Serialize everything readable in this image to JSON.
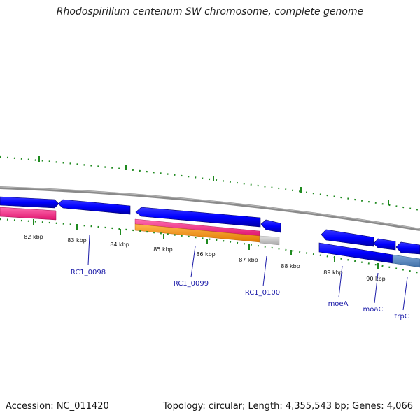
{
  "title": "Rhodospirillum centenum SW chromosome, complete genome",
  "footer": {
    "accession": "Accession: NC_011420",
    "summary": "Topology: circular; Length: 4,355,543 bp; Genes: 4,066"
  },
  "colors": {
    "backbone": "#808080",
    "gene_blue": "#0000ff",
    "gene_blue_dark": "#0000b0",
    "pink": "#ff2d8c",
    "orange": "#ff9800",
    "grey": "#c8c8c8",
    "steel": "#5a8ac0",
    "tick_green": "#1f8a1f",
    "label_blue": "#1a1aa8"
  },
  "kbp_ticks": [
    "82 kbp",
    "83 kbp",
    "84 kbp",
    "85 kbp",
    "86 kbp",
    "87 kbp",
    "88 kbp",
    "89 kbp",
    "90 kbp"
  ],
  "gene_labels": [
    "RC1_0098",
    "RC1_0099",
    "RC1_0100",
    "moeA",
    "moaC",
    "trpC"
  ]
}
